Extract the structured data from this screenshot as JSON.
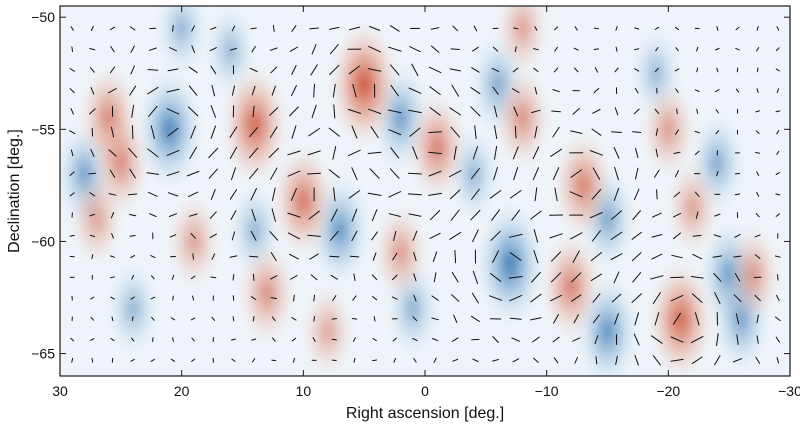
{
  "chart_data": {
    "type": "heatmap",
    "title": "",
    "xlabel": "Right ascension [deg.]",
    "ylabel": "Declination [deg.]",
    "xlim": [
      30,
      -30
    ],
    "ylim": [
      -66,
      -49.5
    ],
    "x_ticks": [
      30,
      20,
      10,
      0,
      -10,
      -20,
      -30
    ],
    "x_tick_labels": [
      "30",
      "20",
      "10",
      "0",
      "−10",
      "−20",
      "−30"
    ],
    "y_ticks": [
      -50,
      -55,
      -60,
      -65
    ],
    "y_tick_labels": [
      "−50",
      "−55",
      "−60",
      "−65"
    ],
    "grid": false,
    "colormap": {
      "negative": "#2f6fad",
      "zero": "#ffffff",
      "positive": "#c8452a"
    },
    "hotspots": [
      {
        "ra": 5,
        "dec": -53,
        "amp": 1.0
      },
      {
        "ra": 14,
        "dec": -54.8,
        "amp": 0.85
      },
      {
        "ra": 26,
        "dec": -54.5,
        "amp": 0.55
      },
      {
        "ra": 25,
        "dec": -56.5,
        "amp": 0.5
      },
      {
        "ra": 10,
        "dec": -58.2,
        "amp": 0.7
      },
      {
        "ra": -1,
        "dec": -55.8,
        "amp": 0.6
      },
      {
        "ra": -13,
        "dec": -57.5,
        "amp": 0.6
      },
      {
        "ra": -8,
        "dec": -54.5,
        "amp": 0.45
      },
      {
        "ra": -21,
        "dec": -63.5,
        "amp": 0.85
      },
      {
        "ra": -12,
        "dec": -62,
        "amp": 0.6
      },
      {
        "ra": 13,
        "dec": -62.3,
        "amp": 0.45
      },
      {
        "ra": -8,
        "dec": -50.5,
        "amp": 0.3
      },
      {
        "ra": 19,
        "dec": -60,
        "amp": 0.3
      },
      {
        "ra": -20,
        "dec": -55,
        "amp": 0.35
      },
      {
        "ra": -22,
        "dec": -58.5,
        "amp": 0.3
      },
      {
        "ra": 2,
        "dec": -60.5,
        "amp": 0.35
      },
      {
        "ra": 27,
        "dec": -59,
        "amp": 0.3
      },
      {
        "ra": -27,
        "dec": -61.5,
        "amp": 0.35
      },
      {
        "ra": 8,
        "dec": -64,
        "amp": 0.25
      }
    ],
    "coldspots": [
      {
        "ra": 21,
        "dec": -55,
        "amp": 0.9
      },
      {
        "ra": 28,
        "dec": -57,
        "amp": 0.55
      },
      {
        "ra": 7,
        "dec": -59.5,
        "amp": 0.7
      },
      {
        "ra": 2,
        "dec": -54.5,
        "amp": 0.6
      },
      {
        "ra": -7,
        "dec": -61,
        "amp": 1.0
      },
      {
        "ra": -15,
        "dec": -59,
        "amp": 0.5
      },
      {
        "ra": -6,
        "dec": -53,
        "amp": 0.45
      },
      {
        "ra": -15,
        "dec": -64,
        "amp": 0.75
      },
      {
        "ra": -25,
        "dec": -61.5,
        "amp": 0.65
      },
      {
        "ra": -26,
        "dec": -63.5,
        "amp": 0.55
      },
      {
        "ra": -24,
        "dec": -56.5,
        "amp": 0.45
      },
      {
        "ra": 20,
        "dec": -50.5,
        "amp": 0.3
      },
      {
        "ra": 14,
        "dec": -59.5,
        "amp": 0.3
      },
      {
        "ra": 1,
        "dec": -63,
        "amp": 0.35
      },
      {
        "ra": -4,
        "dec": -57,
        "amp": 0.3
      },
      {
        "ra": 24,
        "dec": -63,
        "amp": 0.3
      },
      {
        "ra": 16,
        "dec": -51.5,
        "amp": 0.25
      },
      {
        "ra": -19,
        "dec": -52.5,
        "amp": 0.25
      }
    ],
    "polarization_field": {
      "ra_range": [
        29,
        -29
      ],
      "dec_range": [
        -50.5,
        -65.3
      ],
      "ra_samples": 36,
      "dec_samples": 17,
      "swirl_centers": [
        {
          "ra": 5,
          "dec": -53,
          "sense": 1
        },
        {
          "ra": 21,
          "dec": -55,
          "sense": -1
        },
        {
          "ra": -7,
          "dec": -61,
          "sense": -1
        },
        {
          "ra": 10,
          "dec": -58,
          "sense": 1
        },
        {
          "ra": -21,
          "dec": -63.5,
          "sense": 1
        },
        {
          "ra": -1,
          "dec": -55.8,
          "sense": 1
        },
        {
          "ra": -13,
          "dec": -57.5,
          "sense": -1
        }
      ]
    }
  }
}
